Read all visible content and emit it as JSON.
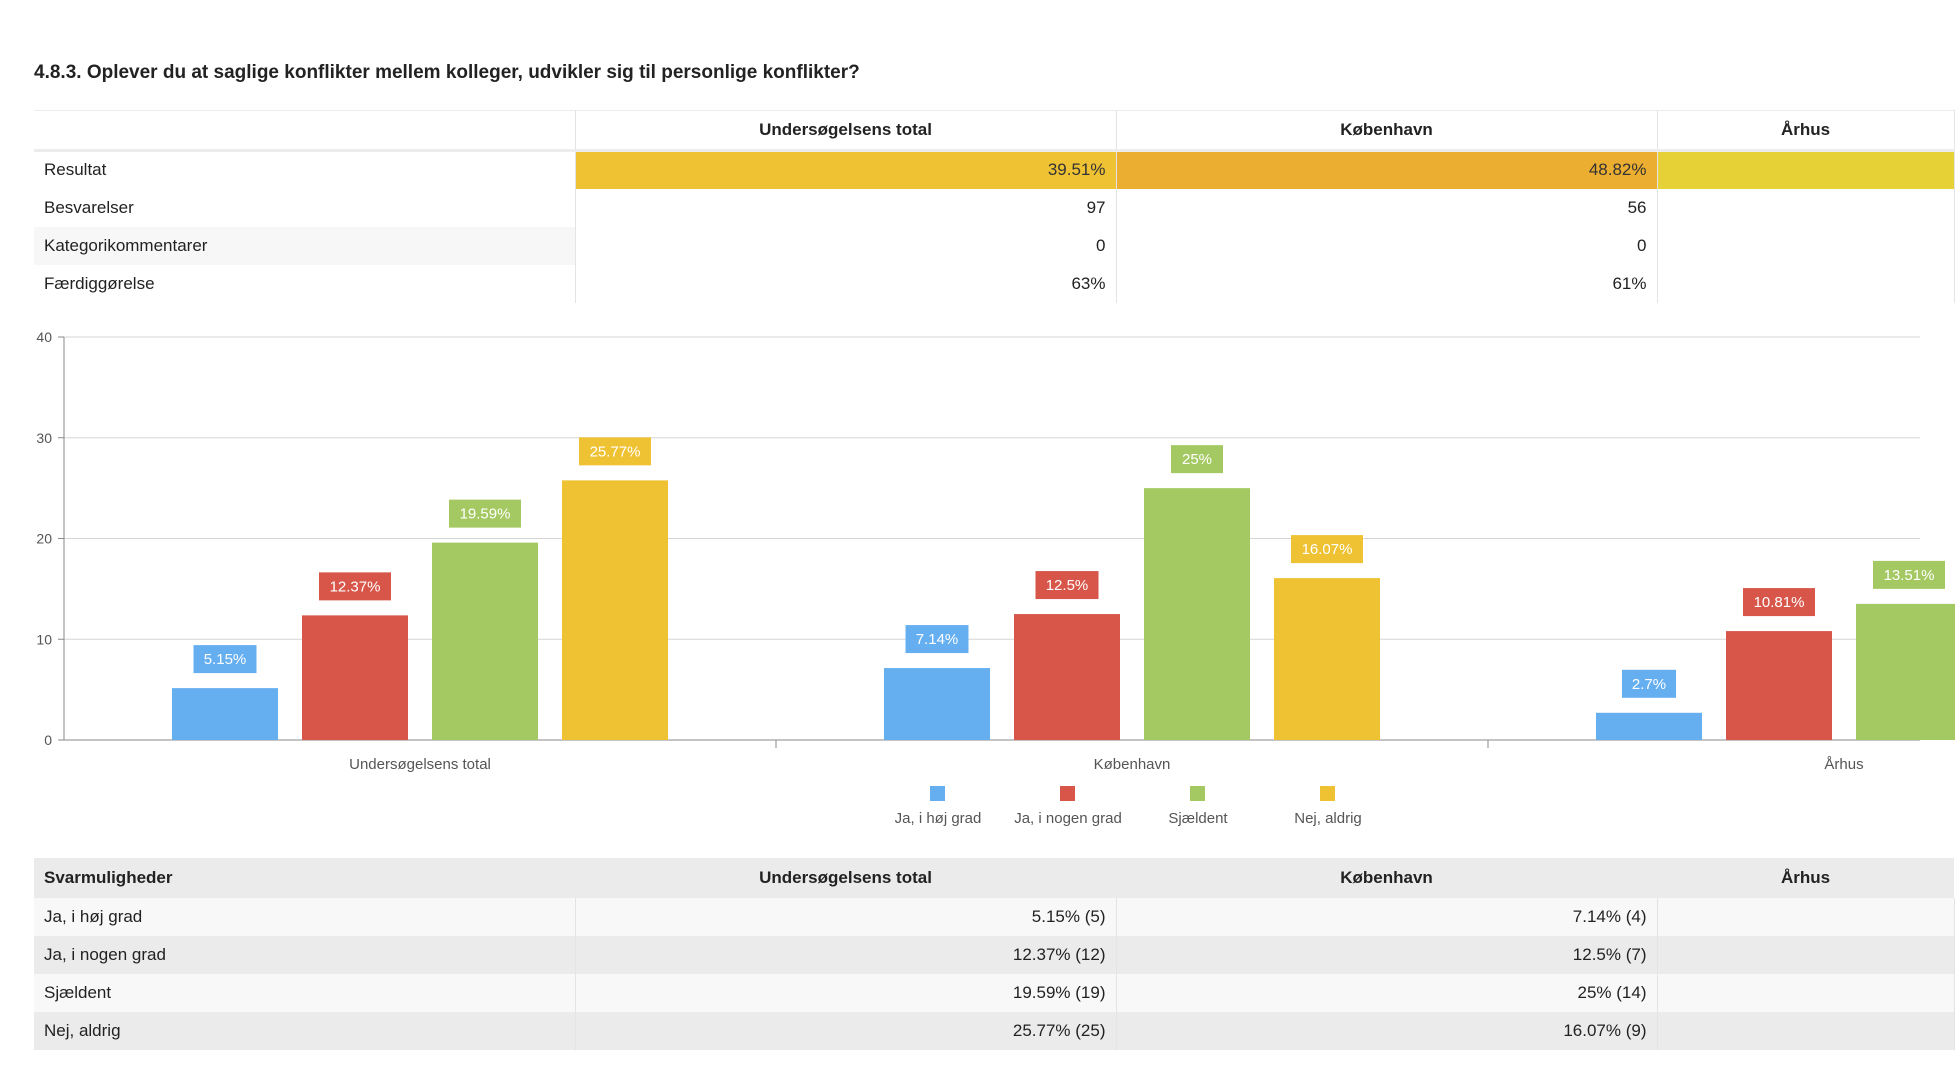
{
  "question": "4.8.3. Oplever du at saglige konflikter mellem kolleger, udvikler sig til personlige konflikter?",
  "summary": {
    "headers": [
      "",
      "Undersøgelsens total",
      "København",
      "Århus"
    ],
    "rows": [
      {
        "label": "Resultat",
        "values": [
          "39.51%",
          "48.82%",
          ""
        ]
      },
      {
        "label": "Besvarelser",
        "values": [
          "97",
          "56",
          ""
        ]
      },
      {
        "label": "Kategorikommentarer",
        "values": [
          "0",
          "0",
          ""
        ]
      },
      {
        "label": "Færdiggørelse",
        "values": [
          "63%",
          "61%",
          ""
        ]
      }
    ],
    "result_colors": [
      "#efc234",
      "#ebae30",
      "#e6d136"
    ]
  },
  "chart_data": {
    "type": "bar",
    "categories": [
      "Undersøgelsens total",
      "København",
      "Århus"
    ],
    "series": [
      {
        "name": "Ja, i høj grad",
        "color": "#65aff0",
        "values": [
          5.15,
          7.14,
          2.7
        ],
        "labels": [
          "5.15%",
          "7.14%",
          "2.7%"
        ]
      },
      {
        "name": "Ja, i nogen grad",
        "color": "#d75649",
        "values": [
          12.37,
          12.5,
          10.81
        ],
        "labels": [
          "12.37%",
          "12.5%",
          "10.81%"
        ]
      },
      {
        "name": "Sjældent",
        "color": "#a5c962",
        "values": [
          19.59,
          25,
          13.51
        ],
        "labels": [
          "19.59%",
          "25%",
          "13.51%"
        ]
      },
      {
        "name": "Nej, aldrig",
        "color": "#efc234",
        "values": [
          25.77,
          16.07,
          null
        ],
        "labels": [
          "25.77%",
          "16.07%",
          ""
        ]
      }
    ],
    "ylim": [
      0,
      40
    ],
    "yticks": [
      "0",
      "10",
      "20",
      "30",
      "40"
    ],
    "grid": true,
    "legend_position": "bottom"
  },
  "distribution": {
    "headers": [
      "Svarmuligheder",
      "Undersøgelsens total",
      "København",
      "Århus"
    ],
    "rows": [
      {
        "label": "Ja, i høj grad",
        "values": [
          "5.15% (5)",
          "7.14% (4)",
          ""
        ]
      },
      {
        "label": "Ja, i nogen grad",
        "values": [
          "12.37% (12)",
          "12.5% (7)",
          ""
        ]
      },
      {
        "label": "Sjældent",
        "values": [
          "19.59% (19)",
          "25% (14)",
          ""
        ]
      },
      {
        "label": "Nej, aldrig",
        "values": [
          "25.77% (25)",
          "16.07% (9)",
          ""
        ]
      }
    ]
  }
}
